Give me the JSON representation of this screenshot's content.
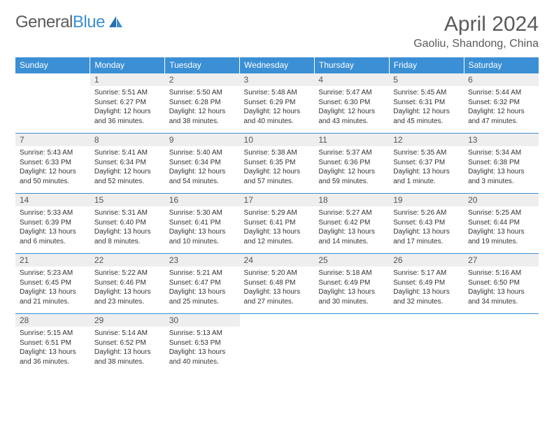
{
  "logo": {
    "text_general": "General",
    "text_blue": "Blue"
  },
  "title": "April 2024",
  "location": "Gaoliu, Shandong, China",
  "colors": {
    "header_bg": "#3b8fd4",
    "header_fg": "#ffffff",
    "daynum_bg": "#eeeeee",
    "border": "#3b8fd4",
    "text": "#333333",
    "title": "#5a5a5a"
  },
  "typography": {
    "body_pt": 10,
    "daynum_pt": 12,
    "title_pt": 30,
    "location_pt": 16,
    "header_pt": 12
  },
  "day_headers": [
    "Sunday",
    "Monday",
    "Tuesday",
    "Wednesday",
    "Thursday",
    "Friday",
    "Saturday"
  ],
  "weeks": [
    [
      null,
      {
        "n": "1",
        "sunrise": "5:51 AM",
        "sunset": "6:27 PM",
        "daylight": "12 hours and 36 minutes."
      },
      {
        "n": "2",
        "sunrise": "5:50 AM",
        "sunset": "6:28 PM",
        "daylight": "12 hours and 38 minutes."
      },
      {
        "n": "3",
        "sunrise": "5:48 AM",
        "sunset": "6:29 PM",
        "daylight": "12 hours and 40 minutes."
      },
      {
        "n": "4",
        "sunrise": "5:47 AM",
        "sunset": "6:30 PM",
        "daylight": "12 hours and 43 minutes."
      },
      {
        "n": "5",
        "sunrise": "5:45 AM",
        "sunset": "6:31 PM",
        "daylight": "12 hours and 45 minutes."
      },
      {
        "n": "6",
        "sunrise": "5:44 AM",
        "sunset": "6:32 PM",
        "daylight": "12 hours and 47 minutes."
      }
    ],
    [
      {
        "n": "7",
        "sunrise": "5:43 AM",
        "sunset": "6:33 PM",
        "daylight": "12 hours and 50 minutes."
      },
      {
        "n": "8",
        "sunrise": "5:41 AM",
        "sunset": "6:34 PM",
        "daylight": "12 hours and 52 minutes."
      },
      {
        "n": "9",
        "sunrise": "5:40 AM",
        "sunset": "6:34 PM",
        "daylight": "12 hours and 54 minutes."
      },
      {
        "n": "10",
        "sunrise": "5:38 AM",
        "sunset": "6:35 PM",
        "daylight": "12 hours and 57 minutes."
      },
      {
        "n": "11",
        "sunrise": "5:37 AM",
        "sunset": "6:36 PM",
        "daylight": "12 hours and 59 minutes."
      },
      {
        "n": "12",
        "sunrise": "5:35 AM",
        "sunset": "6:37 PM",
        "daylight": "13 hours and 1 minute."
      },
      {
        "n": "13",
        "sunrise": "5:34 AM",
        "sunset": "6:38 PM",
        "daylight": "13 hours and 3 minutes."
      }
    ],
    [
      {
        "n": "14",
        "sunrise": "5:33 AM",
        "sunset": "6:39 PM",
        "daylight": "13 hours and 6 minutes."
      },
      {
        "n": "15",
        "sunrise": "5:31 AM",
        "sunset": "6:40 PM",
        "daylight": "13 hours and 8 minutes."
      },
      {
        "n": "16",
        "sunrise": "5:30 AM",
        "sunset": "6:41 PM",
        "daylight": "13 hours and 10 minutes."
      },
      {
        "n": "17",
        "sunrise": "5:29 AM",
        "sunset": "6:41 PM",
        "daylight": "13 hours and 12 minutes."
      },
      {
        "n": "18",
        "sunrise": "5:27 AM",
        "sunset": "6:42 PM",
        "daylight": "13 hours and 14 minutes."
      },
      {
        "n": "19",
        "sunrise": "5:26 AM",
        "sunset": "6:43 PM",
        "daylight": "13 hours and 17 minutes."
      },
      {
        "n": "20",
        "sunrise": "5:25 AM",
        "sunset": "6:44 PM",
        "daylight": "13 hours and 19 minutes."
      }
    ],
    [
      {
        "n": "21",
        "sunrise": "5:23 AM",
        "sunset": "6:45 PM",
        "daylight": "13 hours and 21 minutes."
      },
      {
        "n": "22",
        "sunrise": "5:22 AM",
        "sunset": "6:46 PM",
        "daylight": "13 hours and 23 minutes."
      },
      {
        "n": "23",
        "sunrise": "5:21 AM",
        "sunset": "6:47 PM",
        "daylight": "13 hours and 25 minutes."
      },
      {
        "n": "24",
        "sunrise": "5:20 AM",
        "sunset": "6:48 PM",
        "daylight": "13 hours and 27 minutes."
      },
      {
        "n": "25",
        "sunrise": "5:18 AM",
        "sunset": "6:49 PM",
        "daylight": "13 hours and 30 minutes."
      },
      {
        "n": "26",
        "sunrise": "5:17 AM",
        "sunset": "6:49 PM",
        "daylight": "13 hours and 32 minutes."
      },
      {
        "n": "27",
        "sunrise": "5:16 AM",
        "sunset": "6:50 PM",
        "daylight": "13 hours and 34 minutes."
      }
    ],
    [
      {
        "n": "28",
        "sunrise": "5:15 AM",
        "sunset": "6:51 PM",
        "daylight": "13 hours and 36 minutes."
      },
      {
        "n": "29",
        "sunrise": "5:14 AM",
        "sunset": "6:52 PM",
        "daylight": "13 hours and 38 minutes."
      },
      {
        "n": "30",
        "sunrise": "5:13 AM",
        "sunset": "6:53 PM",
        "daylight": "13 hours and 40 minutes."
      },
      null,
      null,
      null,
      null
    ]
  ],
  "labels": {
    "sunrise": "Sunrise:",
    "sunset": "Sunset:",
    "daylight": "Daylight:"
  }
}
